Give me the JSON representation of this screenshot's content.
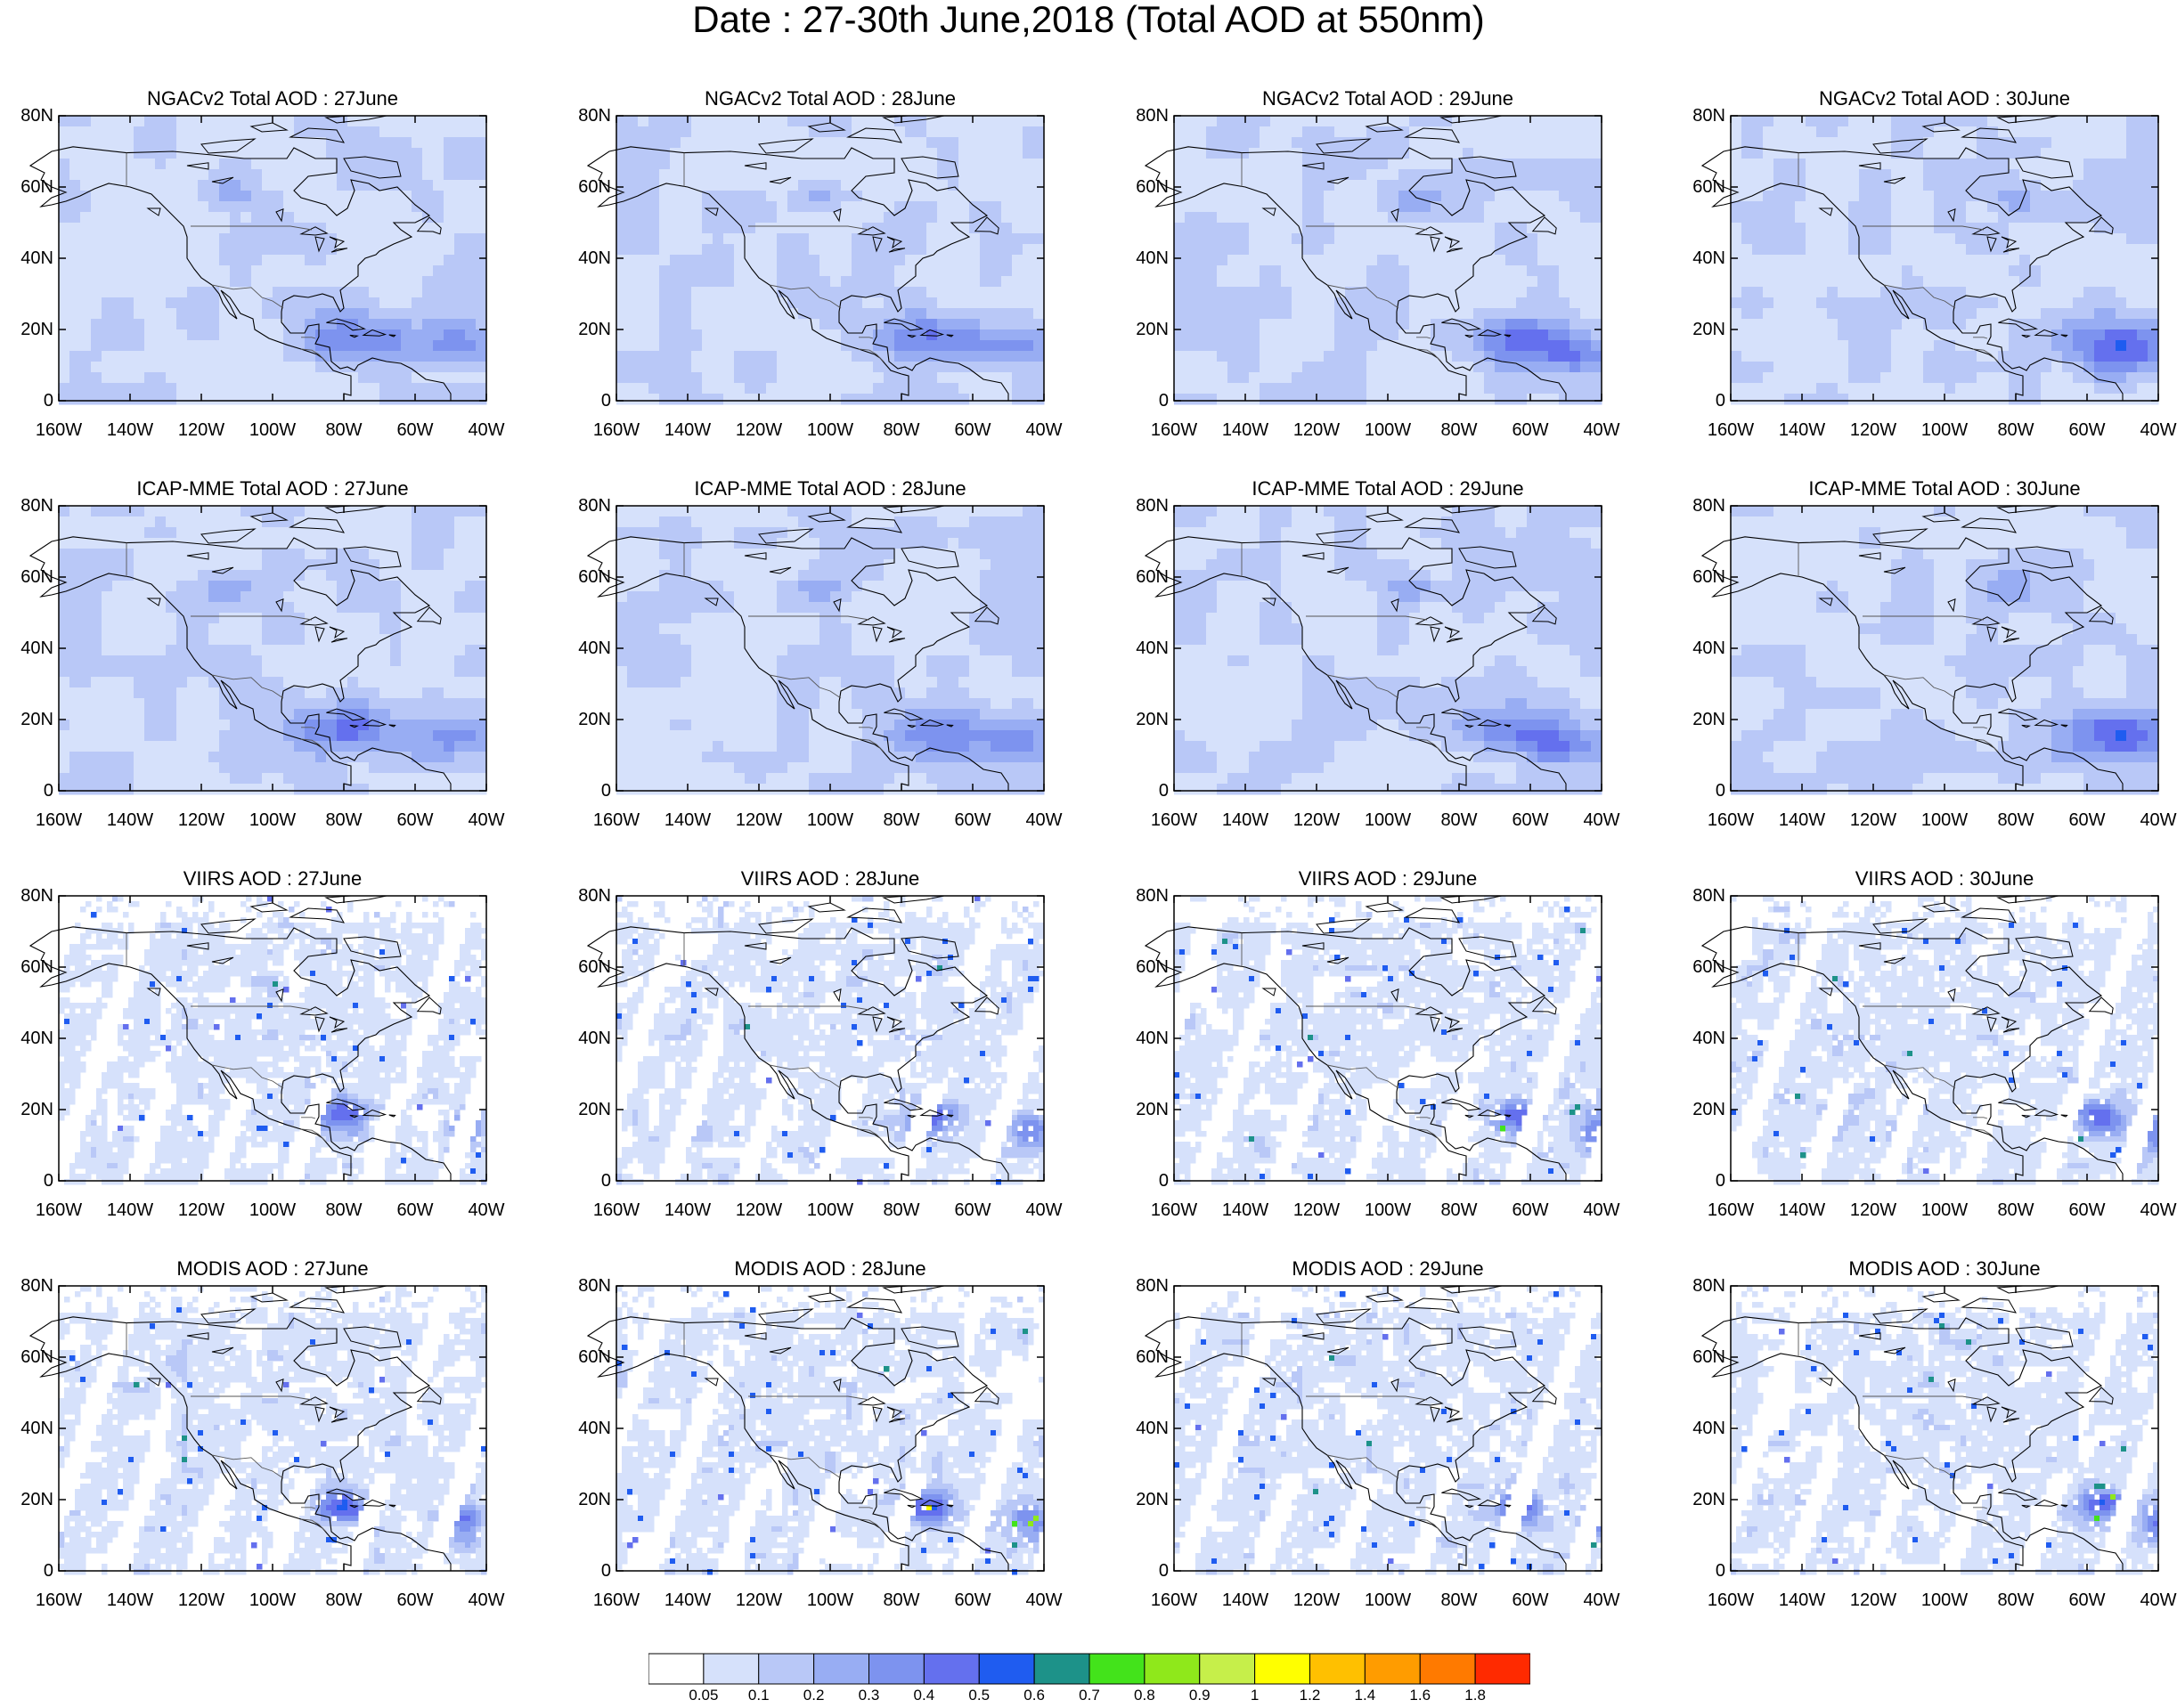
{
  "title": "Date : 27-30th June,2018 (Total AOD at 550nm)",
  "rows": [
    {
      "model": "NGACv2 Total AOD",
      "type": "model",
      "panels": [
        "NGACv2 Total AOD : 27June",
        "NGACv2 Total AOD : 28June",
        "NGACv2 Total AOD : 29June",
        "NGACv2 Total AOD : 30June"
      ]
    },
    {
      "model": "ICAP-MME Total AOD",
      "type": "model",
      "panels": [
        "ICAP-MME Total AOD : 27June",
        "ICAP-MME Total AOD : 28June",
        "ICAP-MME Total AOD : 29June",
        "ICAP-MME Total AOD : 30June"
      ]
    },
    {
      "model": "VIIRS AOD",
      "type": "satellite",
      "panels": [
        "VIIRS AOD : 27June",
        "VIIRS AOD : 28June",
        "VIIRS AOD : 29June",
        "VIIRS AOD : 30June"
      ]
    },
    {
      "model": "MODIS AOD",
      "type": "satellite",
      "panels": [
        "MODIS AOD : 27June",
        "MODIS AOD : 28June",
        "MODIS AOD : 29June",
        "MODIS AOD : 30June"
      ]
    }
  ],
  "lat_ticks": [
    "80N",
    "60N",
    "40N",
    "20N",
    "0"
  ],
  "lon_ticks": [
    "160W",
    "140W",
    "120W",
    "100W",
    "80W",
    "60W",
    "40W"
  ],
  "colorbar": {
    "labels": [
      "0.05",
      "0.1",
      "0.2",
      "0.3",
      "0.4",
      "0.5",
      "0.6",
      "0.7",
      "0.8",
      "0.9",
      "1",
      "1.2",
      "1.4",
      "1.6",
      "1.8"
    ],
    "colors": [
      "#ffffff",
      "#d6e1fb",
      "#b9c8f7",
      "#98adf3",
      "#7d93ef",
      "#6470ee",
      "#1f5cf0",
      "#1d9289",
      "#43e31b",
      "#8fe81b",
      "#c6ef4a",
      "#ffff00",
      "#ffc000",
      "#ff9c00",
      "#ff7a00",
      "#ff2a00"
    ]
  },
  "map_extent": {
    "lon_min": -160,
    "lon_max": -40,
    "lat_min": 0,
    "lat_max": 80
  },
  "land_outline_color": "#000000"
}
